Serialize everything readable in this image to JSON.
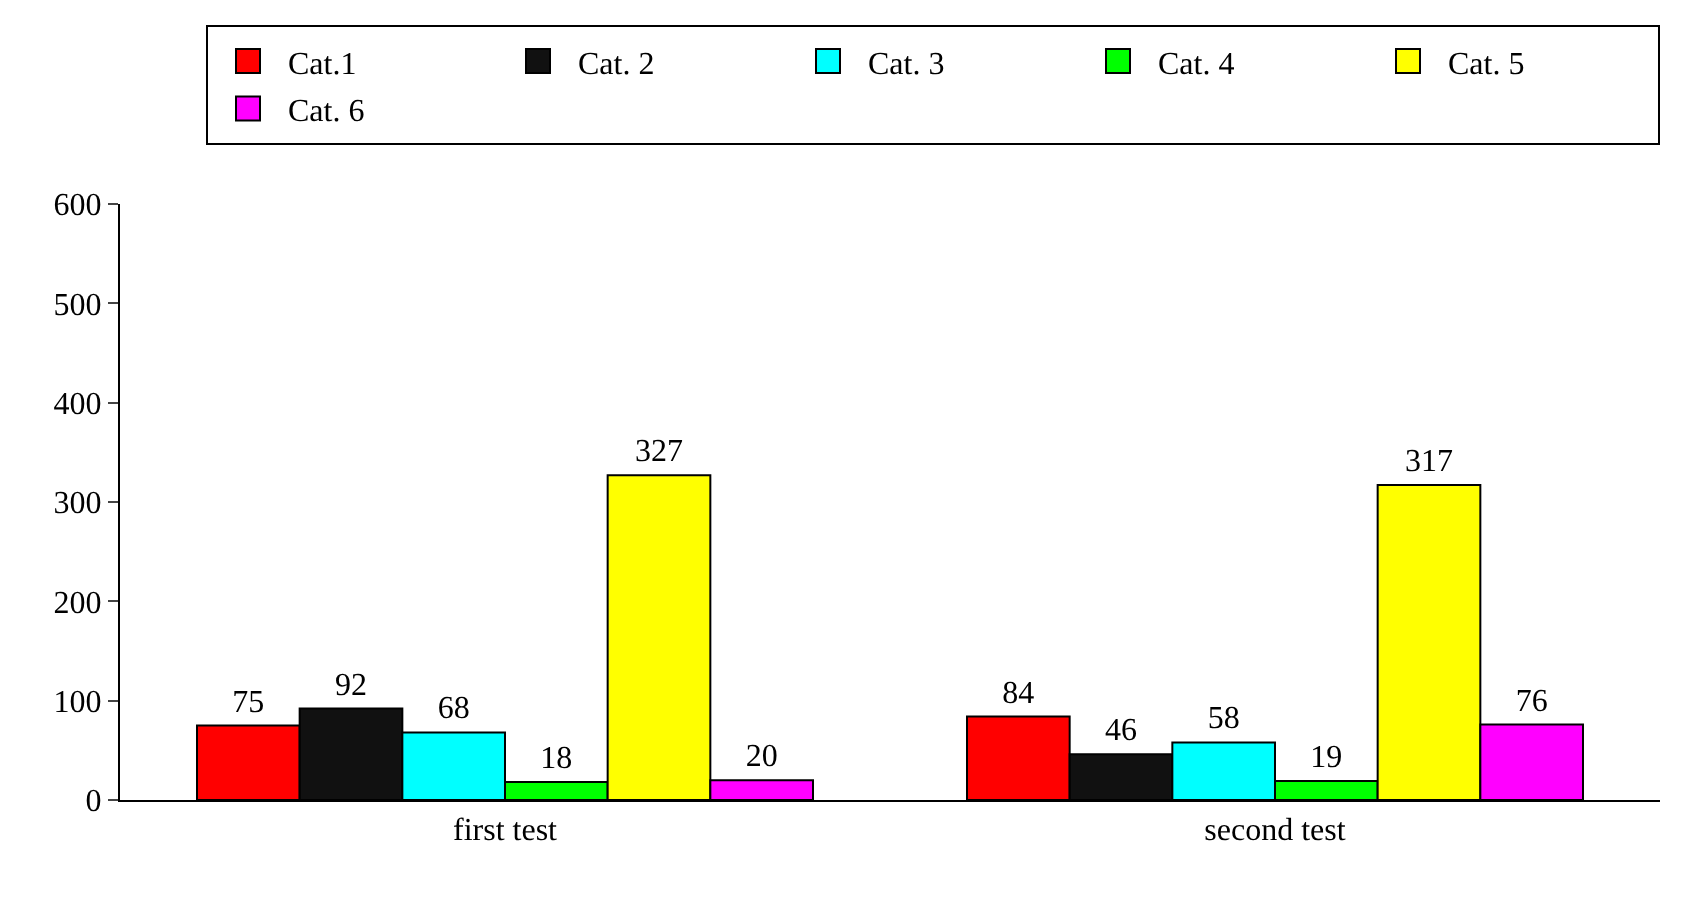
{
  "chart_data": {
    "type": "bar",
    "categories": [
      "first test",
      "second test"
    ],
    "series": [
      {
        "name": "Cat.1",
        "color": "#ff0000",
        "values": [
          75,
          84
        ]
      },
      {
        "name": "Cat. 2",
        "color": "#111111",
        "values": [
          92,
          46
        ]
      },
      {
        "name": "Cat. 3",
        "color": "#00ffff",
        "values": [
          68,
          58
        ]
      },
      {
        "name": "Cat. 4",
        "color": "#00ff00",
        "values": [
          18,
          19
        ]
      },
      {
        "name": "Cat. 5",
        "color": "#ffff00",
        "values": [
          327,
          317
        ]
      },
      {
        "name": "Cat. 6",
        "color": "#ff00ff",
        "values": [
          20,
          76
        ]
      }
    ],
    "ylim": [
      0,
      600
    ],
    "yticks": [
      0,
      100,
      200,
      300,
      400,
      500,
      600
    ],
    "data_labels": true,
    "grid": false,
    "legend": "top right"
  }
}
